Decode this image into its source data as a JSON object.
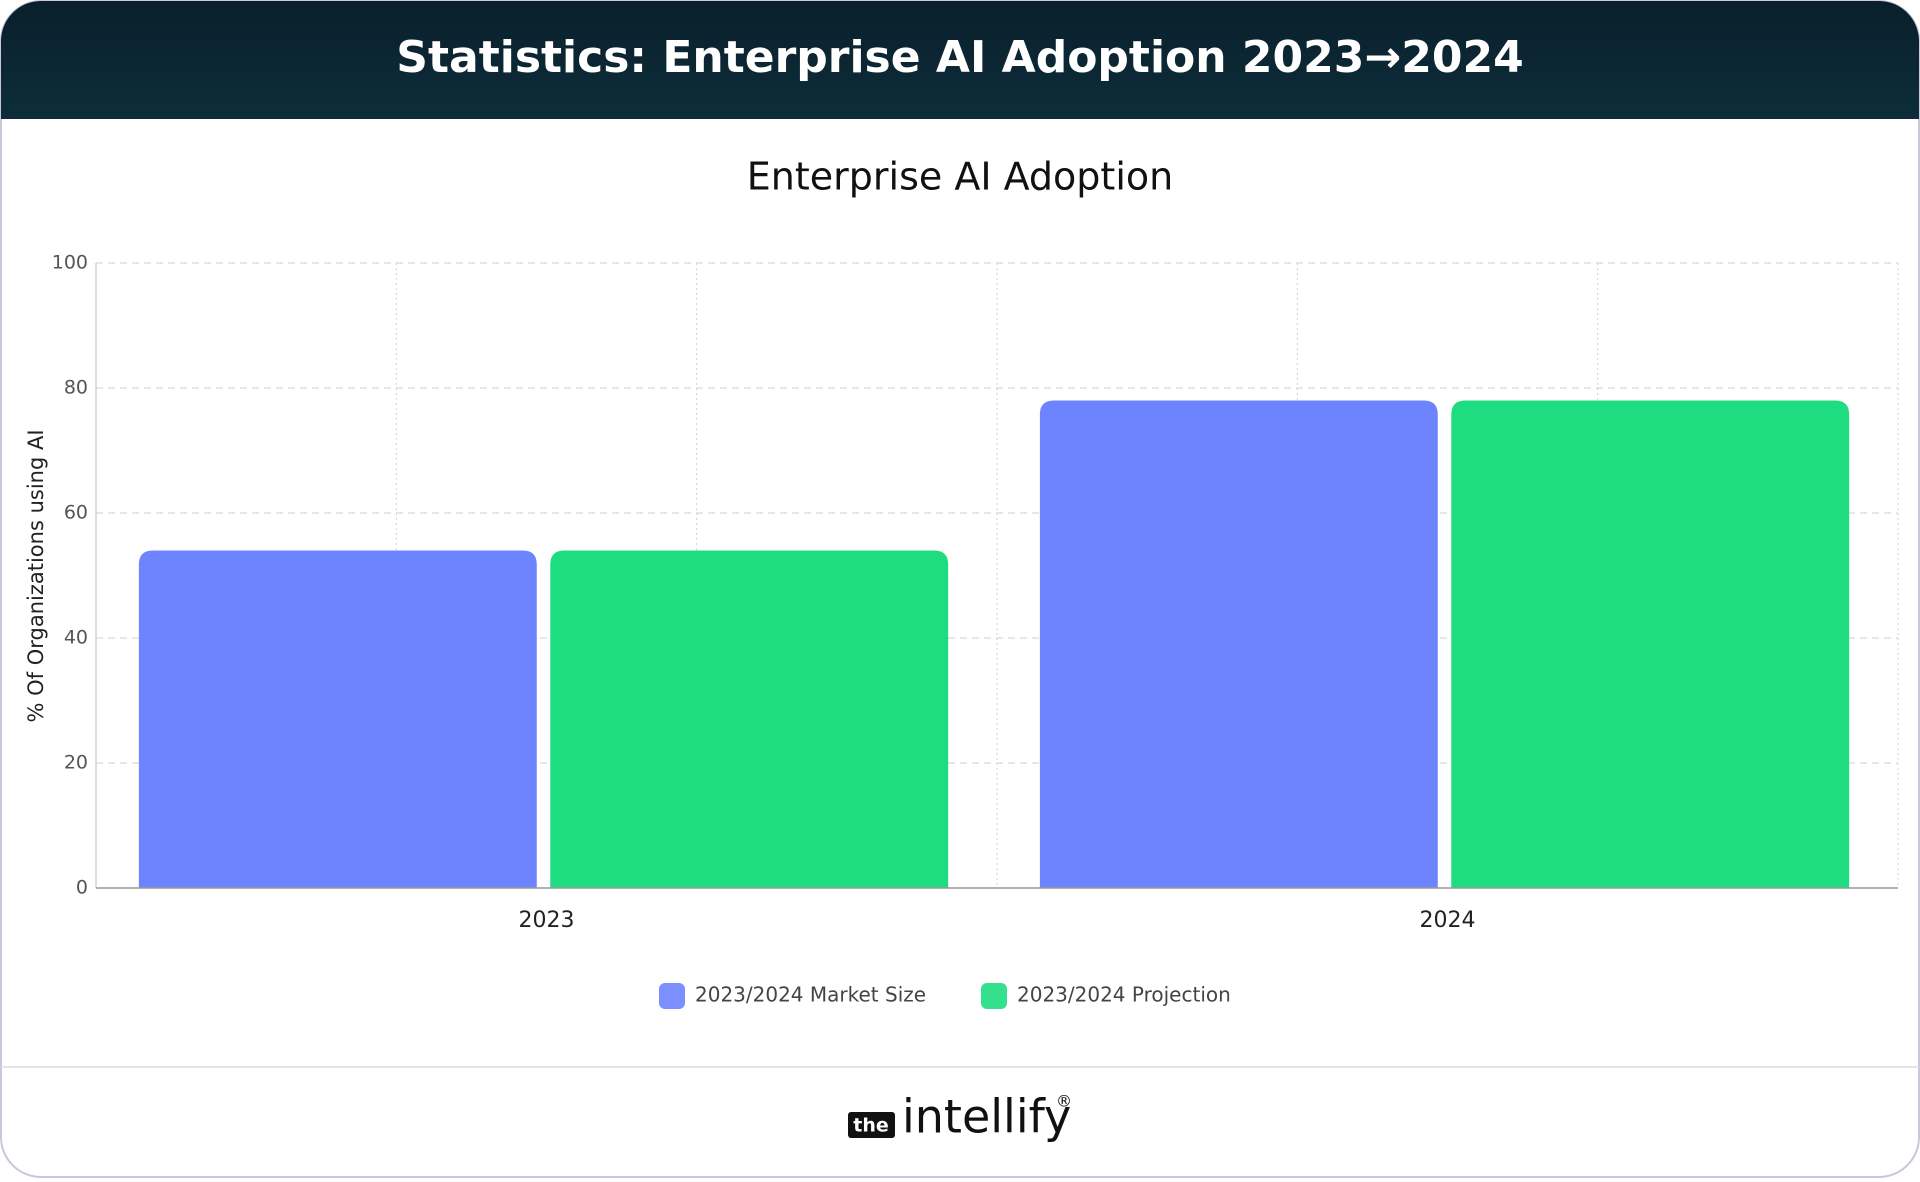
{
  "header": {
    "title": "Statistics: Enterprise AI Adoption 2023→2024"
  },
  "chart_data": {
    "type": "bar",
    "title": "Enterprise AI Adoption",
    "y_label": "% Of Organizations using AI",
    "categories": [
      "2023",
      "2024"
    ],
    "series": [
      {
        "name": "2023/2024 Market Size",
        "color": "#6e83fe",
        "values": [
          54,
          78
        ]
      },
      {
        "name": "2023/2024 Projection",
        "color": "#1edd80",
        "values": [
          54,
          78
        ]
      }
    ],
    "ylim": [
      0,
      100
    ],
    "yticks": [
      0,
      20,
      40,
      60,
      80,
      100
    ],
    "grid": true,
    "legend": "bottom"
  },
  "footer": {
    "brand_prefix": "the",
    "brand_name": "intellify",
    "brand_mark": "®"
  }
}
